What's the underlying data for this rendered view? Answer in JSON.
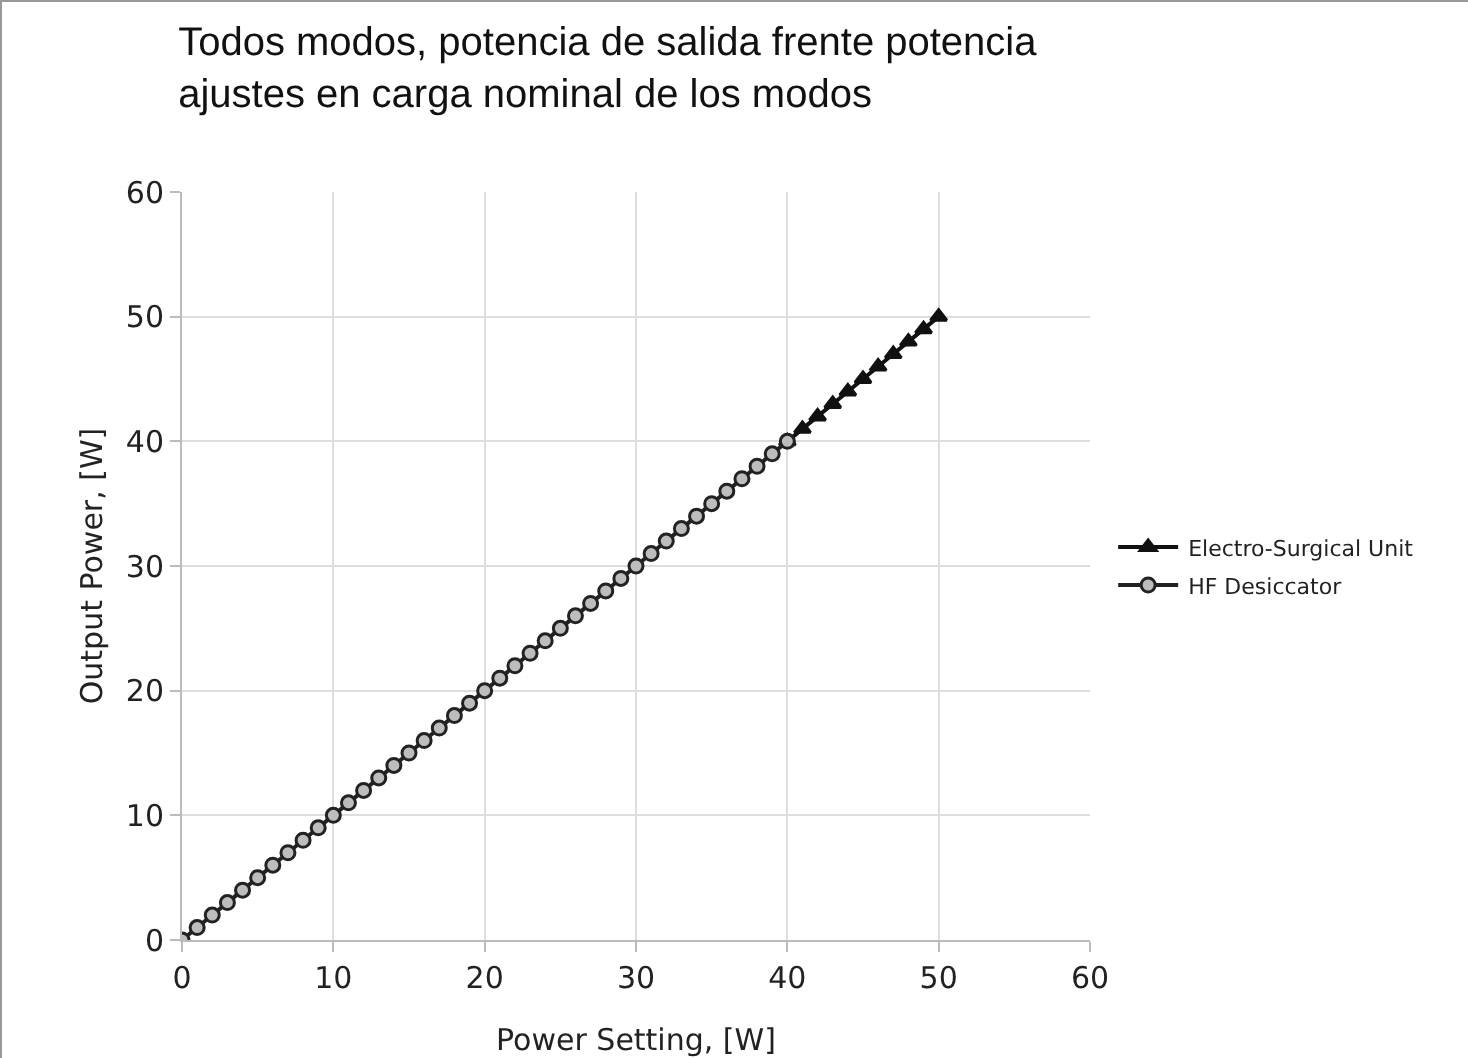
{
  "chart_data": {
    "type": "line",
    "title": "Todos modos, potencia de salida frente potencia ajustes en carga nominal de los modos",
    "xlabel": "Power Setting, [W]",
    "ylabel": "Output Power, [W]",
    "series": [
      {
        "name": "Electro-Surgical Unit",
        "color": "#111111",
        "marker": "triangle",
        "x": [
          40,
          41,
          42,
          43,
          44,
          45,
          46,
          47,
          48,
          49,
          50
        ],
        "values": [
          40,
          41,
          42,
          43,
          44,
          45,
          46,
          47,
          48,
          49,
          50
        ]
      },
      {
        "name": "HF Desiccator",
        "color": "#222222",
        "marker": "circle",
        "x": [
          0,
          1,
          2,
          3,
          4,
          5,
          6,
          7,
          8,
          9,
          10,
          11,
          12,
          13,
          14,
          15,
          16,
          17,
          18,
          19,
          20,
          21,
          22,
          23,
          24,
          25,
          26,
          27,
          28,
          29,
          30,
          31,
          32,
          33,
          34,
          35,
          36,
          37,
          38,
          39,
          40
        ],
        "values": [
          0,
          1,
          2,
          3,
          4,
          5,
          6,
          7,
          8,
          9,
          10,
          11,
          12,
          13,
          14,
          15,
          16,
          17,
          18,
          19,
          20,
          21,
          22,
          23,
          24,
          25,
          26,
          27,
          28,
          29,
          30,
          31,
          32,
          33,
          34,
          35,
          36,
          37,
          38,
          39,
          40
        ]
      }
    ],
    "xlim": [
      0,
      60
    ],
    "xticks": [
      0,
      10,
      20,
      30,
      40,
      50,
      60
    ],
    "ylim": [
      0,
      60
    ],
    "yticks": [
      0,
      10,
      20,
      30,
      40,
      50,
      60
    ],
    "grid": true,
    "legend": "right",
    "line_style": "solid"
  }
}
